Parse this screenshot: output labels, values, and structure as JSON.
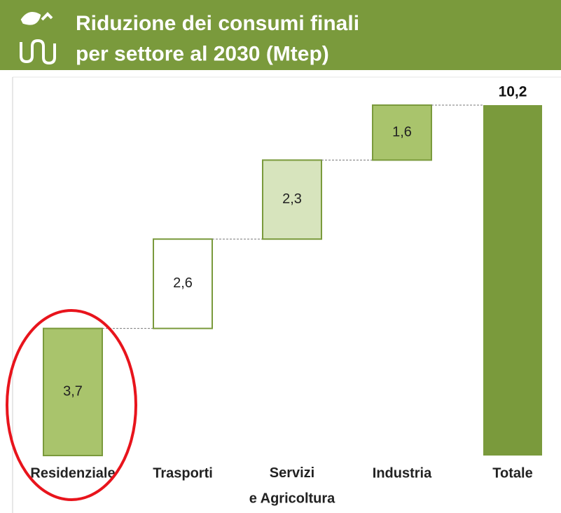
{
  "chart_data": {
    "type": "waterfall",
    "title": "Riduzione dei consumi finali\nper settore al 2030 (Mtep)",
    "categories": [
      "Residenziale",
      "Trasporti",
      "Servizi\ne Agricoltura",
      "Industria",
      "Totale"
    ],
    "values": [
      3.7,
      2.6,
      2.3,
      1.6,
      10.2
    ],
    "value_labels": [
      "3,7",
      "2,6",
      "2,3",
      "1,6",
      "10,2"
    ],
    "colors": [
      "#a9c46c",
      "#ffffff",
      "#d7e4bd",
      "#a9c46c",
      "#7a9a3c"
    ]
  }
}
